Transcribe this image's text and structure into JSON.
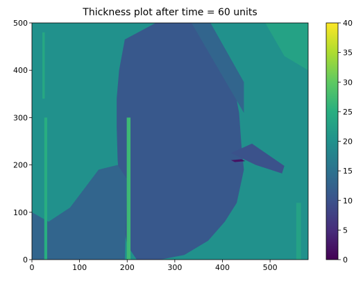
{
  "chart_data": {
    "type": "heatmap",
    "title": "Thickness plot after time = 60 units",
    "xlabel": "",
    "ylabel": "",
    "xlim": [
      0,
      580
    ],
    "ylim": [
      0,
      500
    ],
    "x_ticks": [
      0,
      100,
      200,
      300,
      400,
      500
    ],
    "y_ticks": [
      0,
      100,
      200,
      300,
      400,
      500
    ],
    "colorbar": {
      "colormap": "viridis",
      "min": 0,
      "max": 40,
      "ticks": [
        0,
        5,
        10,
        15,
        20,
        25,
        30,
        35,
        40
      ]
    },
    "regions": [
      {
        "region": "background",
        "value": 20
      },
      {
        "region": "central-grain",
        "value": 11,
        "polygon": [
          [
            195,
            465
          ],
          [
            260,
            500
          ],
          [
            350,
            500
          ],
          [
            375,
            480
          ],
          [
            395,
            440
          ],
          [
            420,
            390
          ],
          [
            435,
            310
          ],
          [
            440,
            240
          ],
          [
            445,
            190
          ],
          [
            430,
            120
          ],
          [
            405,
            80
          ],
          [
            370,
            40
          ],
          [
            320,
            10
          ],
          [
            270,
            0
          ],
          [
            220,
            0
          ],
          [
            200,
            30
          ],
          [
            190,
            90
          ],
          [
            185,
            150
          ],
          [
            180,
            210
          ],
          [
            178,
            280
          ],
          [
            178,
            340
          ],
          [
            183,
            400
          ]
        ]
      },
      {
        "region": "lower-left-grain",
        "value": 13,
        "polygon": [
          [
            0,
            100
          ],
          [
            35,
            80
          ],
          [
            80,
            110
          ],
          [
            140,
            190
          ],
          [
            180,
            200
          ],
          [
            200,
            170
          ],
          [
            195,
            0
          ],
          [
            0,
            0
          ]
        ]
      },
      {
        "region": "band-upper-right",
        "value": 13,
        "polygon": [
          [
            335,
            500
          ],
          [
            375,
            500
          ],
          [
            445,
            375
          ],
          [
            445,
            310
          ]
        ]
      },
      {
        "region": "triangle-right",
        "value": 10,
        "polygon": [
          [
            418,
            225
          ],
          [
            462,
            245
          ],
          [
            530,
            198
          ],
          [
            525,
            182
          ],
          [
            470,
            200
          ]
        ]
      },
      {
        "region": "upper-right-corner",
        "value": 23,
        "polygon": [
          [
            490,
            500
          ],
          [
            580,
            500
          ],
          [
            580,
            400
          ],
          [
            530,
            430
          ]
        ]
      },
      {
        "region": "strip-x30",
        "value": 25,
        "polygon": [
          [
            26,
            0
          ],
          [
            32,
            0
          ],
          [
            32,
            300
          ],
          [
            26,
            300
          ]
        ]
      },
      {
        "region": "strip-x205",
        "value": 27,
        "polygon": [
          [
            199,
            0
          ],
          [
            207,
            0
          ],
          [
            207,
            300
          ],
          [
            199,
            300
          ]
        ]
      },
      {
        "region": "strip-x555",
        "value": 23,
        "polygon": [
          [
            555,
            0
          ],
          [
            565,
            0
          ],
          [
            565,
            120
          ],
          [
            555,
            120
          ]
        ]
      },
      {
        "region": "strip-x25-upper",
        "value": 24,
        "polygon": [
          [
            22,
            340
          ],
          [
            27,
            340
          ],
          [
            27,
            480
          ],
          [
            22,
            480
          ]
        ]
      },
      {
        "region": "defect-line",
        "value": 2,
        "polygon": [
          [
            418,
            210
          ],
          [
            440,
            212
          ],
          [
            448,
            208
          ],
          [
            426,
            206
          ]
        ]
      }
    ]
  }
}
